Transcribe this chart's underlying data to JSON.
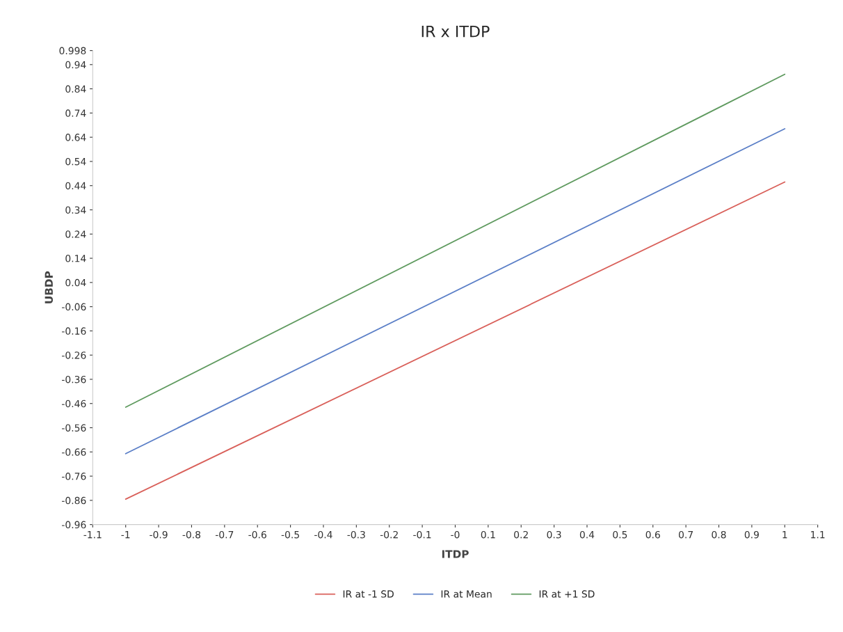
{
  "chart_data": {
    "type": "line",
    "title": "IR x ITDP",
    "xlabel": "ITDP",
    "ylabel": "UBDP",
    "x": [
      -1,
      1
    ],
    "series": [
      {
        "name": "IR at -1 SD",
        "color": "#d9605a",
        "values": [
          -0.855,
          0.455
        ]
      },
      {
        "name": "IR at Mean",
        "color": "#5b7fc7",
        "values": [
          -0.667,
          0.675
        ]
      },
      {
        "name": "IR at +1 SD",
        "color": "#5f9a5f",
        "values": [
          -0.475,
          0.9
        ]
      }
    ],
    "xlim": [
      -1.1,
      1.1
    ],
    "xticks": [
      -1.1,
      -1,
      -0.9,
      -0.8,
      -0.7,
      -0.6,
      -0.5,
      -0.4,
      -0.3,
      -0.2,
      -0.1,
      {
        "value": 0,
        "label": "-0"
      },
      0.1,
      0.2,
      0.3,
      0.4,
      0.5,
      0.6,
      0.7,
      0.8,
      0.9,
      1,
      1.1
    ],
    "ylim": [
      -0.96,
      0.998
    ],
    "yticks": [
      -0.96,
      -0.86,
      -0.76,
      -0.66,
      -0.56,
      -0.46,
      -0.36,
      -0.26,
      -0.16,
      -0.06,
      0.04,
      0.14,
      0.24,
      0.34,
      0.44,
      0.54,
      0.64,
      0.74,
      0.84,
      0.94,
      0.998
    ],
    "grid": false,
    "legend": "bottom",
    "marker": "none",
    "line_style": "solid"
  }
}
